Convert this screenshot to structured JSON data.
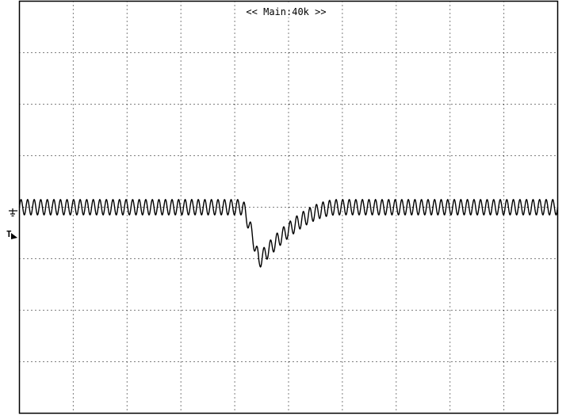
{
  "header": {
    "timebase_label": "<< Main:40k >>"
  },
  "markers": {
    "ground_marker_icon": "ground-symbol-icon",
    "trigger_marker_label": "T",
    "trigger_marker_icon": "trigger-arrow-icon"
  },
  "screen": {
    "horizontal_divisions": 10,
    "vertical_divisions": 8,
    "grid": true,
    "background_color": "#ffffff",
    "trace_color": "#000000",
    "grid_color": "#000000"
  },
  "trace": {
    "baseline_div": 0.0,
    "ripple_amplitude_div": 0.15,
    "ripple_cycles": 82,
    "dip_start_div": 4.15,
    "dip_min_div": 4.45,
    "dip_end_div": 5.9,
    "dip_depth_div": 1.05
  }
}
